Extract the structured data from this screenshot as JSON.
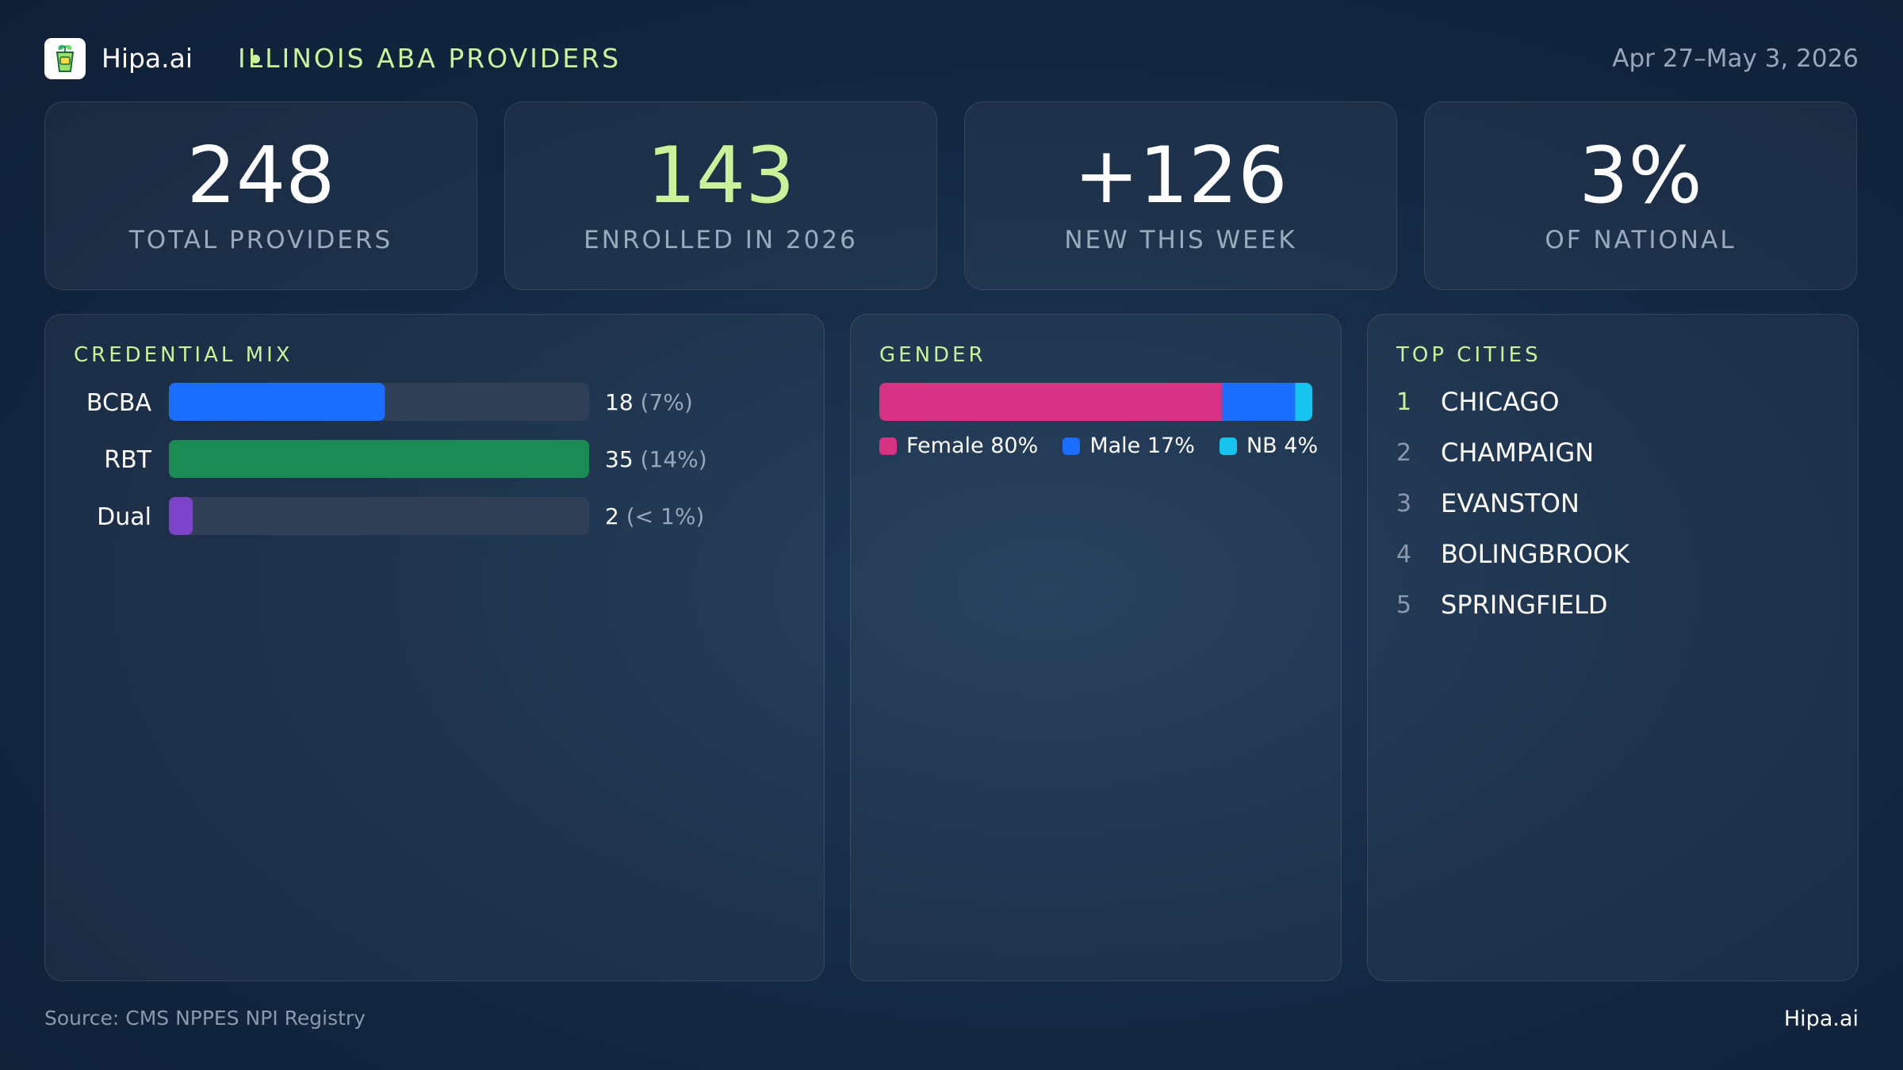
{
  "header": {
    "brand": "Hipa.ai",
    "title": "ILLINOIS ABA PROVIDERS",
    "date_range": "Apr 27–May 3, 2026",
    "logo_icon": "plant-cup-icon"
  },
  "kpis": [
    {
      "value": "248",
      "label": "TOTAL PROVIDERS",
      "accent": false
    },
    {
      "value": "143",
      "label": "ENROLLED IN 2026",
      "accent": true
    },
    {
      "value": "+126",
      "label": "NEW THIS WEEK",
      "accent": false
    },
    {
      "value": "3%",
      "label": "OF NATIONAL",
      "accent": false
    }
  ],
  "colors": {
    "accent": "#c9f29b",
    "bcba": "#1a6dff",
    "rbt": "#1c8a55",
    "dual": "#7b44c8",
    "female": "#d63384",
    "male": "#1a6dff",
    "nb": "#17c4f0",
    "track": "#2f3f55"
  },
  "chart_data": [
    {
      "type": "bar",
      "title": "CREDENTIAL MIX",
      "orientation": "horizontal",
      "categories": [
        "BCBA",
        "RBT",
        "Dual"
      ],
      "values": [
        18,
        35,
        2
      ],
      "percent_labels": [
        "(7%)",
        "(14%)",
        "(< 1%)"
      ],
      "xlim": [
        0,
        35
      ]
    },
    {
      "type": "bar",
      "title": "GENDER",
      "orientation": "stacked-horizontal",
      "categories": [
        "Female",
        "Male",
        "NB"
      ],
      "values": [
        80,
        17,
        4
      ],
      "legend_labels": [
        "Female 80%",
        "Male 17%",
        "NB 4%"
      ],
      "legend": "bottom"
    }
  ],
  "top_cities": {
    "title": "TOP CITIES",
    "items": [
      {
        "rank": "1",
        "name": "CHICAGO"
      },
      {
        "rank": "2",
        "name": "CHAMPAIGN"
      },
      {
        "rank": "3",
        "name": "EVANSTON"
      },
      {
        "rank": "4",
        "name": "BOLINGBROOK"
      },
      {
        "rank": "5",
        "name": "SPRINGFIELD"
      }
    ]
  },
  "footer": {
    "source": "Source: CMS NPPES NPI Registry",
    "brand": "Hipa.ai"
  }
}
